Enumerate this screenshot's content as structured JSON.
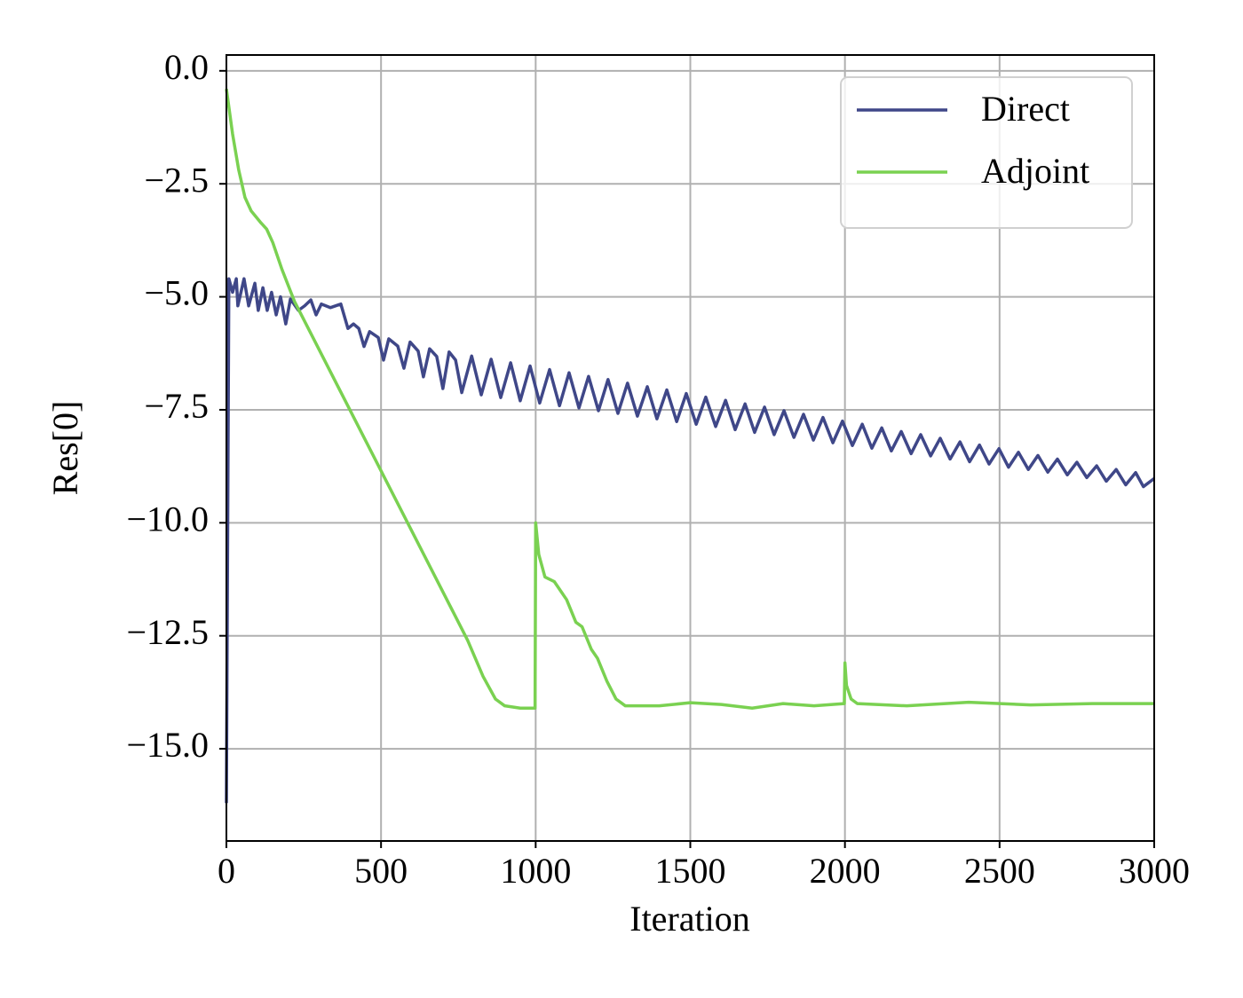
{
  "chart_data": {
    "type": "line",
    "xlabel": "Iteration",
    "ylabel": "Res[0]",
    "xlim": [
      0,
      3000
    ],
    "ylim": [
      -17.04,
      0.35
    ],
    "xticks": [
      0,
      500,
      1000,
      1500,
      2000,
      2500,
      3000
    ],
    "yticks": [
      {
        "value": 0,
        "label": "0.0"
      },
      {
        "value": -2.5,
        "label": "−2.5"
      },
      {
        "value": -5,
        "label": "−5.0"
      },
      {
        "value": -7.5,
        "label": "−7.5"
      },
      {
        "value": -10,
        "label": "−10.0"
      },
      {
        "value": -12.5,
        "label": "−12.5"
      },
      {
        "value": -15,
        "label": "−15.0"
      }
    ],
    "grid": true,
    "legend": "upper right",
    "series": [
      {
        "name": "Direct",
        "color": "#3f4788",
        "x": [
          0,
          8,
          20,
          32,
          37,
          57,
          72,
          92,
          103,
          118,
          132,
          146,
          161,
          175,
          192,
          207,
          233,
          253,
          273,
          290,
          307,
          336,
          370,
          393,
          411,
          428,
          445,
          463,
          491,
          508,
          525,
          554,
          574,
          594,
          620,
          637,
          657,
          680,
          700,
          720,
          741,
          761,
          793,
          824,
          856,
          887,
          919,
          950,
          982,
          1013,
          1045,
          1077,
          1108,
          1140,
          1171,
          1203,
          1234,
          1266,
          1297,
          1329,
          1361,
          1392,
          1424,
          1456,
          1487,
          1519,
          1550,
          1582,
          1614,
          1645,
          1677,
          1708,
          1740,
          1771,
          1803,
          1835,
          1866,
          1898,
          1929,
          1961,
          1992,
          2024,
          2056,
          2087,
          2119,
          2150,
          2182,
          2214,
          2245,
          2277,
          2308,
          2340,
          2372,
          2403,
          2435,
          2466,
          2498,
          2529,
          2561,
          2593,
          2624,
          2656,
          2687,
          2719,
          2750,
          2782,
          2814,
          2845,
          2877,
          2908,
          2940,
          2965,
          3000
        ],
        "values": [
          -16.2,
          -4.6,
          -4.9,
          -4.6,
          -5.2,
          -4.6,
          -5.2,
          -4.7,
          -5.3,
          -4.8,
          -5.3,
          -4.9,
          -5.4,
          -5.0,
          -5.6,
          -5.05,
          -5.3,
          -5.2,
          -5.07,
          -5.4,
          -5.16,
          -5.24,
          -5.16,
          -5.7,
          -5.6,
          -5.7,
          -6.1,
          -5.77,
          -5.9,
          -6.4,
          -5.93,
          -6.09,
          -6.58,
          -6.0,
          -6.2,
          -6.77,
          -6.15,
          -6.32,
          -7.03,
          -6.22,
          -6.4,
          -7.12,
          -6.31,
          -7.17,
          -6.38,
          -7.23,
          -6.46,
          -7.3,
          -6.53,
          -7.35,
          -6.61,
          -7.41,
          -6.68,
          -7.46,
          -6.76,
          -7.52,
          -6.83,
          -7.58,
          -6.91,
          -7.64,
          -6.99,
          -7.7,
          -7.06,
          -7.76,
          -7.14,
          -7.82,
          -7.22,
          -7.87,
          -7.29,
          -7.94,
          -7.37,
          -8.0,
          -7.44,
          -8.05,
          -7.52,
          -8.11,
          -7.6,
          -8.17,
          -7.67,
          -8.23,
          -7.75,
          -8.29,
          -7.82,
          -8.35,
          -7.9,
          -8.41,
          -7.98,
          -8.47,
          -8.05,
          -8.52,
          -8.13,
          -8.59,
          -8.21,
          -8.65,
          -8.28,
          -8.7,
          -8.36,
          -8.77,
          -8.44,
          -8.82,
          -8.51,
          -8.88,
          -8.59,
          -8.94,
          -8.66,
          -9.0,
          -8.74,
          -9.08,
          -8.82,
          -9.16,
          -8.89,
          -9.2,
          -9.02
        ]
      },
      {
        "name": "Adjoint",
        "color": "#7ad151",
        "x": [
          0,
          20,
          40,
          60,
          80,
          110,
          130,
          150,
          180,
          220,
          780,
          830,
          870,
          900,
          950,
          998,
          1000,
          1010,
          1030,
          1060,
          1100,
          1130,
          1150,
          1180,
          1200,
          1230,
          1260,
          1290,
          1400,
          1500,
          1600,
          1700,
          1800,
          1900,
          1998,
          2000,
          2005,
          2020,
          2040,
          2200,
          2400,
          2600,
          2800,
          3000
        ],
        "values": [
          -0.4,
          -1.4,
          -2.2,
          -2.8,
          -3.1,
          -3.35,
          -3.5,
          -3.8,
          -4.4,
          -5.1,
          -12.6,
          -13.4,
          -13.9,
          -14.05,
          -14.1,
          -14.1,
          -10.0,
          -10.7,
          -11.2,
          -11.3,
          -11.7,
          -12.2,
          -12.3,
          -12.8,
          -13.0,
          -13.5,
          -13.9,
          -14.05,
          -14.05,
          -13.98,
          -14.02,
          -14.1,
          -14.0,
          -14.05,
          -14.0,
          -13.1,
          -13.6,
          -13.9,
          -14.0,
          -14.05,
          -13.97,
          -14.03,
          -14.0,
          -14.0
        ]
      }
    ]
  }
}
